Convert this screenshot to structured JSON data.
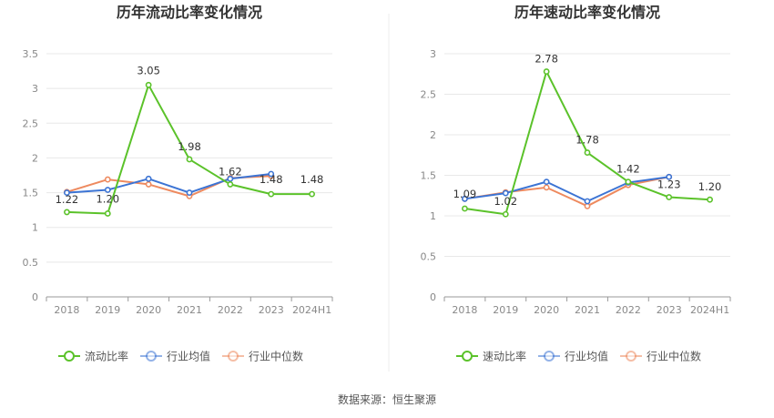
{
  "colors": {
    "primary": "#5bc22a",
    "industry_avg": "#3c74d4",
    "industry_median": "#ee8a5f",
    "grid": "#e8e8e8",
    "axis": "#999999"
  },
  "source": "数据来源：恒生聚源",
  "chart_data": [
    {
      "type": "line",
      "title": "历年流动比率变化情况",
      "categories": [
        "2018",
        "2019",
        "2020",
        "2021",
        "2022",
        "2023",
        "2024H1"
      ],
      "ylim": [
        0,
        3.5
      ],
      "yticks": [
        0,
        0.5,
        1,
        1.5,
        2,
        2.5,
        3,
        3.5
      ],
      "ytick_labels": [
        "0",
        "0.5",
        "1",
        "1.5",
        "2",
        "2.5",
        "3",
        "3.5"
      ],
      "grid": true,
      "legend": "bottom",
      "series": [
        {
          "name": "流动比率",
          "values": [
            1.22,
            1.2,
            3.05,
            1.98,
            1.62,
            1.48,
            1.48
          ],
          "labels": [
            "1.22",
            "1.20",
            "3.05",
            "1.98",
            "1.62",
            "1.48",
            "1.48"
          ]
        },
        {
          "name": "行业均值",
          "values": [
            1.5,
            1.54,
            1.7,
            1.5,
            1.7,
            1.77,
            null
          ]
        },
        {
          "name": "行业中位数",
          "values": [
            1.51,
            1.69,
            1.62,
            1.45,
            1.71,
            1.74,
            null
          ]
        }
      ]
    },
    {
      "type": "line",
      "title": "历年速动比率变化情况",
      "categories": [
        "2018",
        "2019",
        "2020",
        "2021",
        "2022",
        "2023",
        "2024H1"
      ],
      "ylim": [
        0,
        3
      ],
      "yticks": [
        0,
        0.5,
        1,
        1.5,
        2,
        2.5,
        3
      ],
      "ytick_labels": [
        "0",
        "0.5",
        "1",
        "1.5",
        "2",
        "2.5",
        "3"
      ],
      "grid": true,
      "legend": "bottom",
      "series": [
        {
          "name": "速动比率",
          "values": [
            1.09,
            1.02,
            2.78,
            1.78,
            1.42,
            1.23,
            1.2
          ],
          "labels": [
            "1.09",
            "1.02",
            "2.78",
            "1.78",
            "1.42",
            "1.23",
            "1.20"
          ]
        },
        {
          "name": "行业均值",
          "values": [
            1.21,
            1.28,
            1.42,
            1.18,
            1.41,
            1.48,
            null
          ]
        },
        {
          "name": "行业中位数",
          "values": [
            1.21,
            1.29,
            1.35,
            1.12,
            1.38,
            1.48,
            null
          ]
        }
      ]
    }
  ]
}
